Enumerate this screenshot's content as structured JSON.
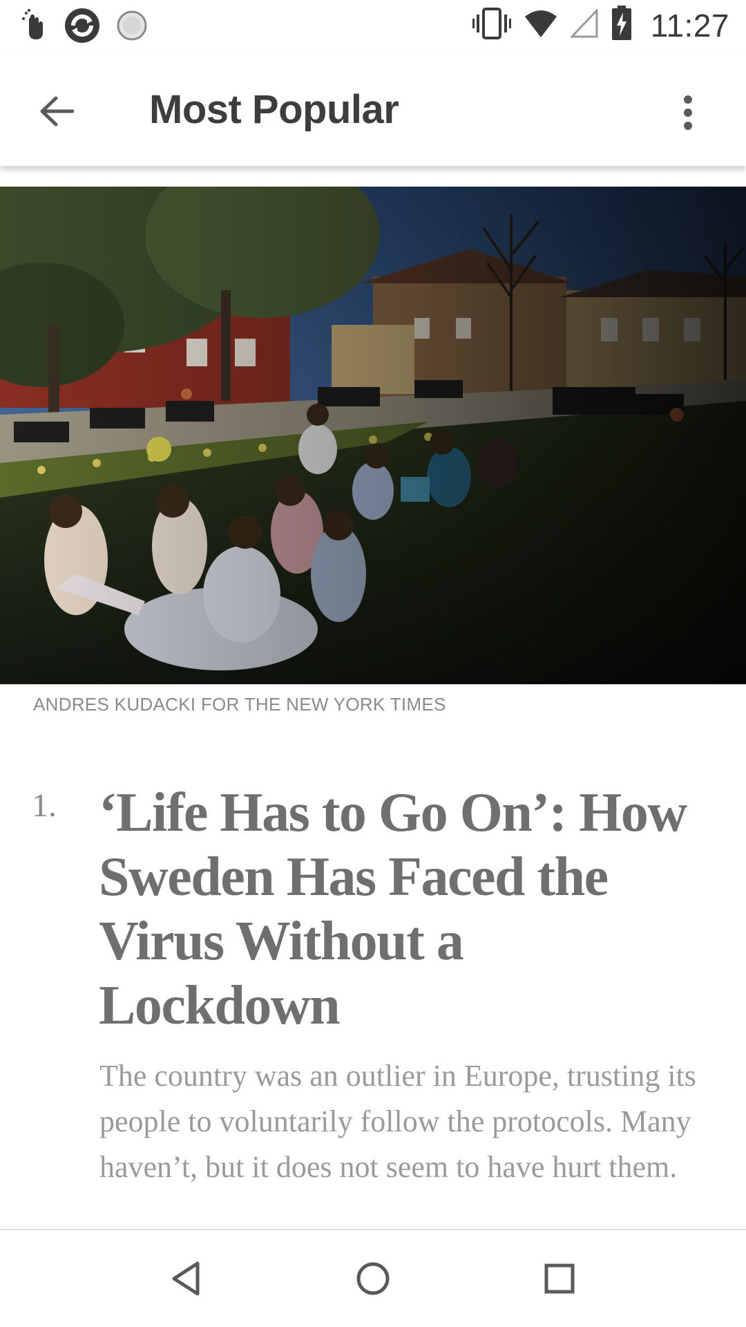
{
  "status_bar": {
    "time": "11:27",
    "left_icons": [
      "gesture-icon",
      "sync-app-icon",
      "loading-circle-icon"
    ],
    "right_icons": [
      "vibrate-icon",
      "wifi-icon",
      "cell-signal-icon",
      "battery-charging-icon"
    ]
  },
  "app_bar": {
    "title": "Most Popular",
    "back_icon": "arrow-back-icon",
    "more_icon": "more-vert-icon"
  },
  "article": {
    "photo_credit": "ANDRES KUDACKI FOR THE NEW YORK TIMES",
    "rank": "1.",
    "headline": "‘Life Has to Go On’: How Sweden Has Faced the Virus Without a Lockdown",
    "summary": "The country was an outlier in Europe, trusting its people to voluntarily follow the protocols. Many haven’t, but it does not seem to have hurt them."
  },
  "nav_bar": {
    "icons": [
      "back-triangle-icon",
      "home-circle-icon",
      "recents-square-icon"
    ]
  }
}
